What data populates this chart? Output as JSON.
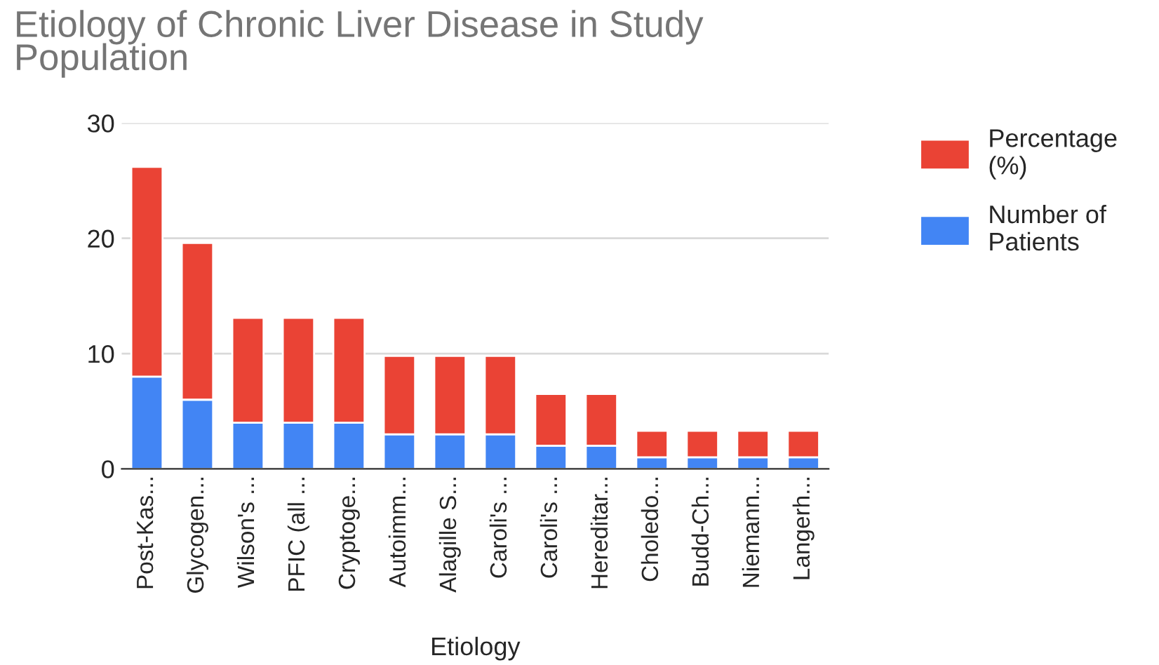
{
  "chart_data": {
    "type": "bar",
    "title": "Etiology of Chronic Liver Disease in Study\nPopulation",
    "xlabel": "Etiology",
    "categories": [
      "Post-Kas...",
      "Glycogen...",
      "Wilson's ...",
      "PFIC (all ...",
      "Cryptoge...",
      "Autoimm...",
      "Alagille S...",
      "Caroli's ...",
      "Caroli's ...",
      "Hereditar...",
      "Choledo...",
      "Budd-Ch...",
      "Niemann...",
      "Langerh..."
    ],
    "stacked": true,
    "series": [
      {
        "name": "Number of Patients",
        "color": "#4285f4",
        "values": [
          8,
          6,
          4,
          4,
          4,
          3,
          3,
          3,
          2,
          2,
          1,
          1,
          1,
          1
        ]
      },
      {
        "name": "Percentage (%)",
        "color": "#ea4335",
        "values": [
          18.2,
          13.6,
          9.1,
          9.1,
          9.1,
          6.8,
          6.8,
          6.8,
          4.5,
          4.5,
          2.3,
          2.3,
          2.3,
          2.3
        ]
      }
    ],
    "ylim": [
      0,
      30
    ],
    "yticks": [
      0,
      10,
      20,
      30
    ],
    "grid": "y",
    "legend": "right"
  }
}
